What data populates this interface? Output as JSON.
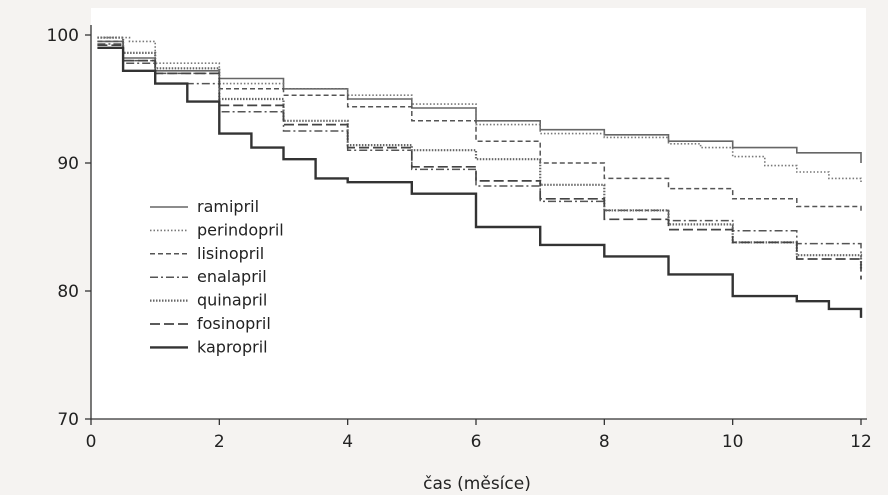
{
  "chart_data": {
    "type": "line",
    "xlabel": "čas (měsíce)",
    "ylabel": "",
    "xlim": [
      0,
      12
    ],
    "ylim": [
      70,
      100
    ],
    "xticks": [
      0,
      2,
      4,
      6,
      8,
      10,
      12
    ],
    "yticks": [
      70,
      80,
      90,
      100
    ],
    "grid": false,
    "legend": "left-middle",
    "series": [
      {
        "name": "ramipril",
        "color": "#666666",
        "style": "solid",
        "x": [
          0.1,
          0.5,
          1,
          2,
          3,
          4,
          5,
          6,
          7,
          8,
          9,
          10,
          11,
          12
        ],
        "y": [
          99.5,
          98.2,
          97.2,
          96.6,
          95.8,
          95.0,
          94.3,
          93.3,
          92.6,
          92.2,
          91.7,
          91.2,
          90.8,
          90.0
        ]
      },
      {
        "name": "perindopril",
        "color": "#777777",
        "style": "dotted",
        "x": [
          0.1,
          0.6,
          1,
          2,
          3,
          4,
          5,
          6,
          7,
          8,
          9,
          9.5,
          10,
          10.5,
          11,
          11.5,
          12
        ],
        "y": [
          99.8,
          99.5,
          97.8,
          96.2,
          95.8,
          95.3,
          94.6,
          93.0,
          92.3,
          92.0,
          91.5,
          91.2,
          90.5,
          89.8,
          89.3,
          88.8,
          88.5
        ]
      },
      {
        "name": "lisinopril",
        "color": "#555555",
        "style": "dashed",
        "x": [
          0.1,
          0.5,
          1,
          2,
          3,
          4,
          5,
          6,
          7,
          8,
          9,
          10,
          11,
          12
        ],
        "y": [
          99.5,
          98.0,
          97.0,
          95.8,
          95.3,
          94.4,
          93.3,
          91.7,
          90.0,
          88.8,
          88.0,
          87.2,
          86.6,
          86.2
        ]
      },
      {
        "name": "enalapril",
        "color": "#555555",
        "style": "dashdot",
        "x": [
          0.1,
          0.5,
          1,
          2,
          3,
          4,
          5,
          6,
          7,
          8,
          9,
          10,
          11,
          12
        ],
        "y": [
          99.3,
          97.8,
          96.2,
          94.0,
          92.5,
          91.0,
          89.5,
          88.2,
          87.0,
          86.3,
          85.5,
          84.7,
          83.7,
          82.6
        ]
      },
      {
        "name": "quinapril",
        "color": "#666666",
        "style": "dotted-thick",
        "x": [
          0.1,
          0.5,
          1,
          2,
          3,
          4,
          5,
          6,
          7,
          8,
          9,
          10,
          11,
          12
        ],
        "y": [
          99.8,
          98.6,
          97.4,
          95.0,
          93.3,
          91.4,
          91.0,
          90.3,
          88.3,
          86.3,
          85.2,
          83.8,
          82.8,
          81.7
        ]
      },
      {
        "name": "fosinopril",
        "color": "#444444",
        "style": "longdash",
        "x": [
          0.1,
          0.5,
          1,
          2,
          3,
          4,
          5,
          6,
          7,
          8,
          9,
          10,
          11,
          12
        ],
        "y": [
          99.2,
          98.0,
          97.0,
          94.5,
          93.0,
          91.2,
          89.7,
          88.6,
          87.2,
          85.6,
          84.8,
          83.8,
          82.5,
          80.9
        ]
      },
      {
        "name": "kapropril",
        "color": "#333333",
        "style": "thick",
        "x": [
          0.1,
          0.5,
          1,
          1.5,
          2,
          2.5,
          3,
          3.5,
          4,
          5,
          6,
          7,
          8,
          9,
          10,
          11,
          11.5,
          12
        ],
        "y": [
          99.0,
          97.2,
          96.2,
          94.8,
          92.3,
          91.2,
          90.3,
          88.8,
          88.5,
          87.6,
          85.0,
          83.6,
          82.7,
          81.3,
          79.6,
          79.2,
          78.6,
          77.9
        ]
      }
    ]
  }
}
